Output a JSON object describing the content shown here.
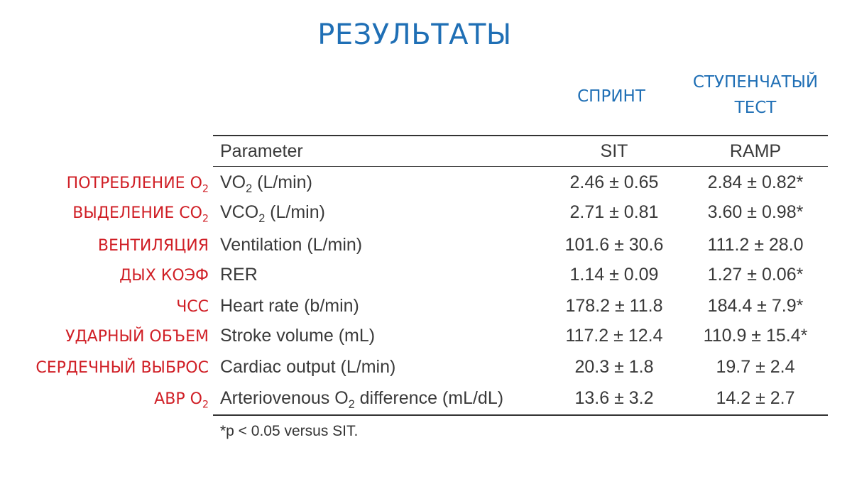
{
  "title": "РЕЗУЛЬТАТЫ",
  "columns": {
    "sprint_label": "СПРИНТ",
    "step_label_line1": "СТУПЕНЧАТЫЙ",
    "step_label_line2": "ТЕСТ"
  },
  "table": {
    "headers": {
      "parameter": "Parameter",
      "sit": "SIT",
      "ramp": "RAMP"
    },
    "rows": [
      {
        "ru_label": "ПОТРЕБЛЕНИЕ О",
        "ru_sub": "2",
        "param_pre": "VO",
        "param_sub": "2",
        "param_post": " (L/min)",
        "sit": "2.46 ± 0.65",
        "ramp": "2.84 ± 0.82*"
      },
      {
        "ru_label": "ВЫДЕЛЕНИЕ СО",
        "ru_sub": "2",
        "param_pre": "VCO",
        "param_sub": "2",
        "param_post": " (L/min)",
        "sit": "2.71 ± 0.81",
        "ramp": "3.60 ± 0.98*"
      },
      {
        "ru_label": "ВЕНТИЛЯЦИЯ",
        "ru_sub": "",
        "param_pre": "Ventilation (L/min)",
        "param_sub": "",
        "param_post": "",
        "sit": "101.6 ± 30.6",
        "ramp": "111.2 ± 28.0"
      },
      {
        "ru_label": "ДЫХ КОЭФ",
        "ru_sub": "",
        "param_pre": "RER",
        "param_sub": "",
        "param_post": "",
        "sit": "1.14 ± 0.09",
        "ramp": "1.27 ± 0.06*"
      },
      {
        "ru_label": "ЧСС",
        "ru_sub": "",
        "param_pre": "Heart rate (b/min)",
        "param_sub": "",
        "param_post": "",
        "sit": "178.2 ± 11.8",
        "ramp": "184.4 ± 7.9*"
      },
      {
        "ru_label": "УДАРНЫЙ ОБЪЕМ",
        "ru_sub": "",
        "param_pre": "Stroke volume (mL)",
        "param_sub": "",
        "param_post": "",
        "sit": "117.2 ± 12.4",
        "ramp": "110.9 ± 15.4*"
      },
      {
        "ru_label": "СЕРДЕЧНЫЙ ВЫБРОС",
        "ru_sub": "",
        "param_pre": "Cardiac output (L/min)",
        "param_sub": "",
        "param_post": "",
        "sit": "20.3 ± 1.8",
        "ramp": "19.7 ± 2.4"
      },
      {
        "ru_label": "АВР О",
        "ru_sub": "2",
        "param_pre": "Arteriovenous O",
        "param_sub": "2",
        "param_post": " difference (mL/dL)",
        "sit": "13.6 ± 3.2",
        "ramp": "14.2 ± 2.7"
      }
    ],
    "footnote": "*p < 0.05 versus SIT."
  }
}
